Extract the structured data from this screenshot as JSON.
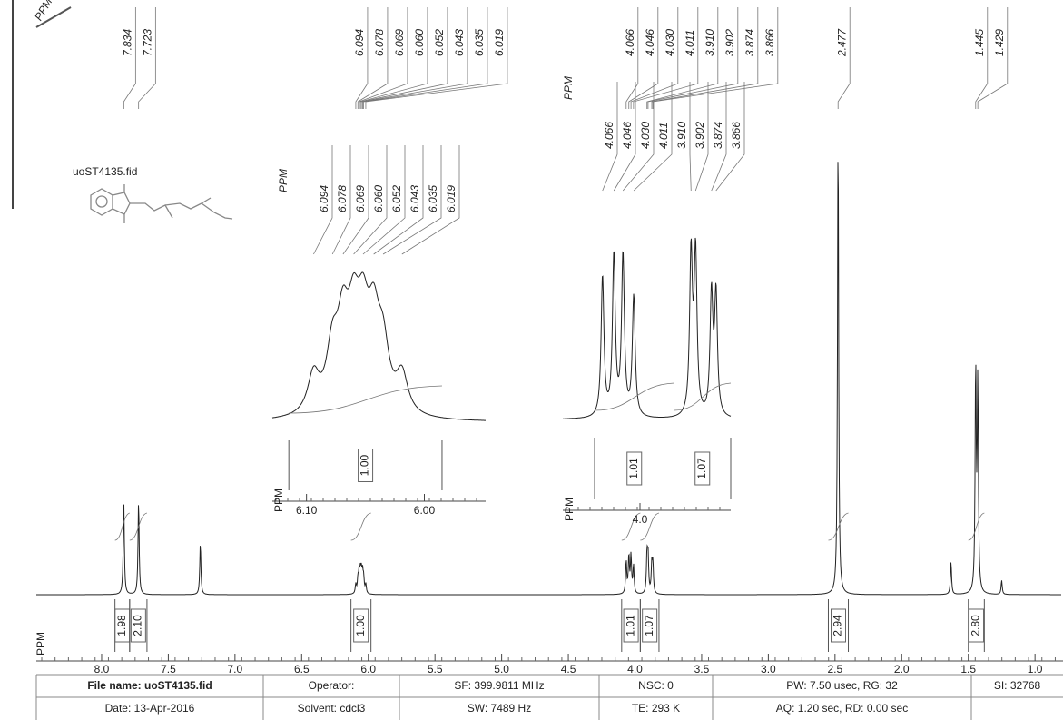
{
  "chart_data": {
    "type": "nmr",
    "unit_label": "PPM",
    "file_label": "uoST4135.fid",
    "axis_unit": "PPM",
    "xlim": [
      8.49,
      0.79
    ],
    "xticks": [
      {
        "value": 8,
        "label": "8.0"
      },
      7.5,
      {
        "value": 7,
        "label": "7.0"
      },
      6.5,
      {
        "value": 6,
        "label": "6.0"
      },
      5.5,
      {
        "value": 5,
        "label": "5.0"
      },
      4.5,
      {
        "value": 4,
        "label": "4.0"
      },
      3.5,
      {
        "value": 3,
        "label": "3.0"
      },
      2.5,
      {
        "value": 2,
        "label": "2.0"
      },
      1.5,
      {
        "value": 1,
        "label": "1.0"
      }
    ],
    "peaks": [
      {
        "ppm": 7.834,
        "label": "7.834",
        "intensity": 20
      },
      {
        "ppm": 7.723,
        "label": "7.723",
        "intensity": 20
      },
      {
        "ppm": 7.26,
        "intensity": 11
      },
      {
        "ppm": 6.094,
        "label": "6.094",
        "intensity": 2
      },
      {
        "ppm": 6.078,
        "label": "6.078",
        "intensity": 3
      },
      {
        "ppm": 6.069,
        "label": "6.069",
        "intensity": 4
      },
      {
        "ppm": 6.06,
        "label": "6.060",
        "intensity": 4
      },
      {
        "ppm": 6.052,
        "label": "6.052",
        "intensity": 4
      },
      {
        "ppm": 6.043,
        "label": "6.043",
        "intensity": 4
      },
      {
        "ppm": 6.035,
        "label": "6.035",
        "intensity": 3
      },
      {
        "ppm": 6.019,
        "label": "6.019",
        "intensity": 2
      },
      {
        "ppm": 4.066,
        "label": "4.066",
        "intensity": 7
      },
      {
        "ppm": 4.046,
        "label": "4.046",
        "intensity": 8
      },
      {
        "ppm": 4.03,
        "label": "4.030",
        "intensity": 8
      },
      {
        "ppm": 4.011,
        "label": "4.011",
        "intensity": 6
      },
      {
        "ppm": 3.91,
        "label": "3.910",
        "intensity": 8
      },
      {
        "ppm": 3.902,
        "label": "3.902",
        "intensity": 8
      },
      {
        "ppm": 3.874,
        "label": "3.874",
        "intensity": 6
      },
      {
        "ppm": 3.866,
        "label": "3.866",
        "intensity": 6
      },
      {
        "ppm": 2.477,
        "label": "2.477",
        "intensity": 100
      },
      {
        "ppm": 1.63,
        "intensity": 7
      },
      {
        "ppm": 1.445,
        "label": "1.445",
        "intensity": 48
      },
      {
        "ppm": 1.429,
        "label": "1.429",
        "intensity": 45
      },
      {
        "ppm": 1.25,
        "intensity": 3
      }
    ],
    "integrals": [
      {
        "value": 1.98,
        "range": [
          7.9,
          7.79
        ]
      },
      {
        "value": 2.1,
        "label": "2.10",
        "range": [
          7.79,
          7.66
        ]
      },
      {
        "value": 1,
        "label": "1.00",
        "range": [
          6.13,
          5.98
        ]
      },
      {
        "value": 1.01,
        "range": [
          4.1,
          3.96
        ]
      },
      {
        "value": 1.07,
        "range": [
          3.96,
          3.82
        ]
      },
      {
        "value": 2.94,
        "range": [
          2.55,
          2.4
        ]
      },
      {
        "value": 2.8,
        "label": "2.80",
        "range": [
          1.5,
          1.38
        ]
      }
    ],
    "insets": [
      {
        "peak_list_unit": "PPM",
        "axis_unit": "PPM",
        "peak_labels": [
          "6.094",
          "6.078",
          "6.069",
          "6.060",
          "6.052",
          "6.043",
          "6.035",
          "6.019"
        ],
        "xlim": [
          6.129,
          5.948
        ],
        "xticks": [
          {
            "value": 6.1,
            "label": "6.10"
          },
          {
            "value": 6,
            "label": "6.00"
          }
        ],
        "integrals": [
          {
            "value": 1,
            "label": "1.00",
            "range": [
              6.115,
              5.985
            ]
          }
        ]
      },
      {
        "peak_list_unit": "PPM",
        "axis_unit": "PPM",
        "peak_labels": [
          "4.066",
          "4.046",
          "4.030",
          "4.011",
          "3.910",
          "3.902",
          "3.874",
          "3.866"
        ],
        "xlim": [
          4.136,
          3.84
        ],
        "xticks": [
          {
            "value": 4,
            "label": "4.0"
          }
        ],
        "integrals": [
          {
            "value": 1.01,
            "range": [
              4.08,
              3.94
            ]
          },
          {
            "value": 1.07,
            "range": [
              3.94,
              3.84
            ]
          }
        ]
      }
    ],
    "info": [
      [
        "File name: uoST4135.fid",
        "Operator:",
        "SF: 399.9811 MHz",
        "NSC: 0",
        "PW: 7.50 usec, RG: 32",
        "SI: 32768"
      ],
      [
        "Date: 13-Apr-2016",
        "Solvent: cdcl3",
        "SW: 7489 Hz",
        "TE: 293 K",
        "AQ: 1.20 sec, RD: 0.00 sec"
      ]
    ]
  }
}
